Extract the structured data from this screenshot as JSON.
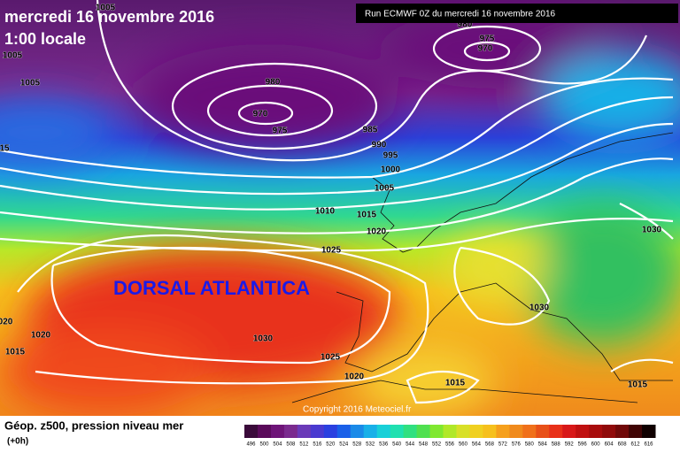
{
  "header": {
    "date": "mercredi 16 novembre 2016",
    "time": "1:00 locale",
    "run": "Run ECMWF 0Z du mercredi 16 novembre 2016"
  },
  "map": {
    "annotation": "DORSAL ATLANTICA",
    "copyright": "Copyright 2016 Meteociel.fr",
    "isobar_labels": [
      "1005",
      "1005",
      "1005",
      "980",
      "975",
      "970",
      "980",
      "970",
      "975",
      "985",
      "990",
      "995",
      "1000",
      "1005",
      "1010",
      "1015",
      "1020",
      "1025",
      "1030",
      "1030",
      "1030",
      "1025",
      "1020",
      "1020",
      "020",
      "1015",
      "1015",
      "1015",
      "15"
    ]
  },
  "footer": {
    "title": "Géop. z500, pression niveau mer",
    "step": "(+0h)",
    "scale_labels": [
      "496",
      "500",
      "504",
      "508",
      "512",
      "516",
      "520",
      "524",
      "528",
      "532",
      "536",
      "540",
      "544",
      "548",
      "552",
      "556",
      "560",
      "564",
      "568",
      "572",
      "576",
      "580",
      "584",
      "588",
      "592",
      "596",
      "600",
      "604",
      "608",
      "612",
      "616"
    ]
  }
}
